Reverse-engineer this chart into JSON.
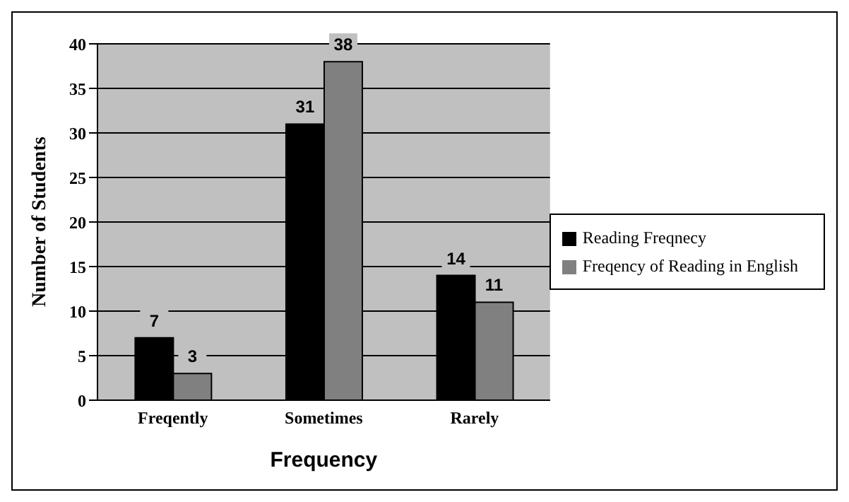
{
  "chart_data": {
    "type": "bar",
    "xlabel": "Frequency",
    "ylabel": "Number of Students",
    "categories": [
      "Freqently",
      "Sometimes",
      "Rarely"
    ],
    "series": [
      {
        "name": "Reading Freqnecy",
        "color": "#000000",
        "values": [
          7,
          31,
          14
        ]
      },
      {
        "name": "Freqency of Reading in English",
        "color": "#808080",
        "values": [
          3,
          38,
          11
        ]
      }
    ],
    "ylim": [
      0,
      40
    ],
    "yticks": [
      0,
      5,
      10,
      15,
      20,
      25,
      30,
      35,
      40
    ],
    "grid": "y",
    "legend": "right",
    "data_labels": true
  }
}
